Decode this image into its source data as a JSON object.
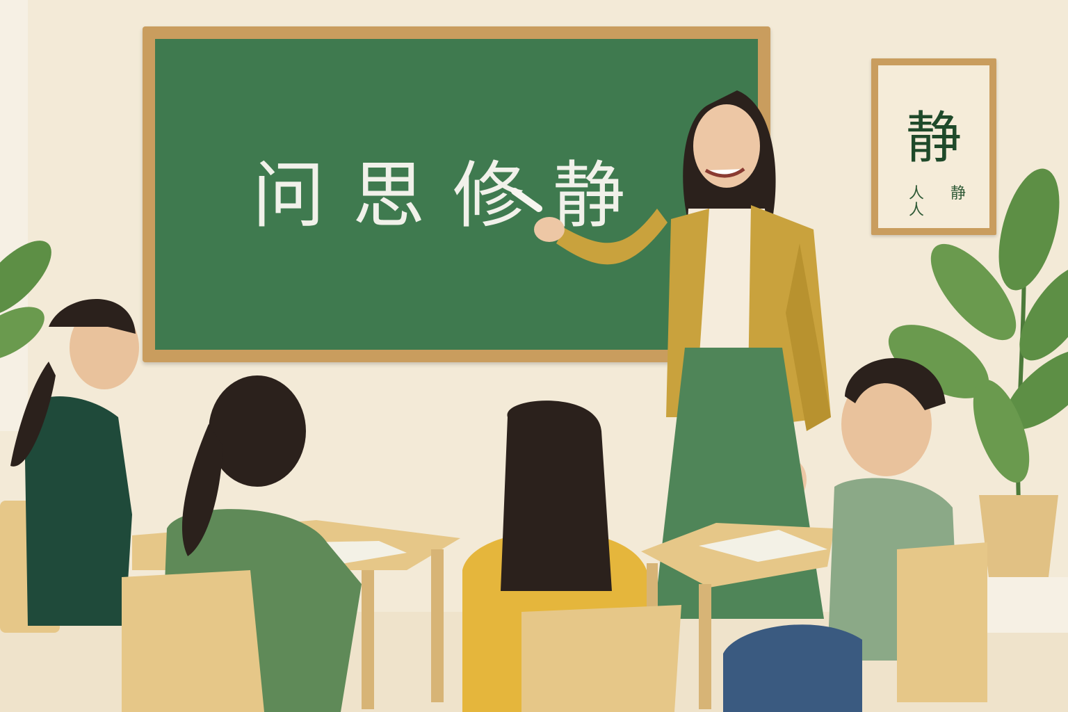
{
  "chalkboard": {
    "text": "问思修静"
  },
  "wall_art": {
    "main_char": "静",
    "small_left": "人",
    "small_right": "静",
    "small_bottom": "人"
  },
  "colors": {
    "wall": "#f3ead7",
    "board": "#3f7a4f",
    "frame": "#c99d5e",
    "cardigan": "#c9a23d",
    "skirt": "#4f8558",
    "desk": "#e6c788"
  }
}
